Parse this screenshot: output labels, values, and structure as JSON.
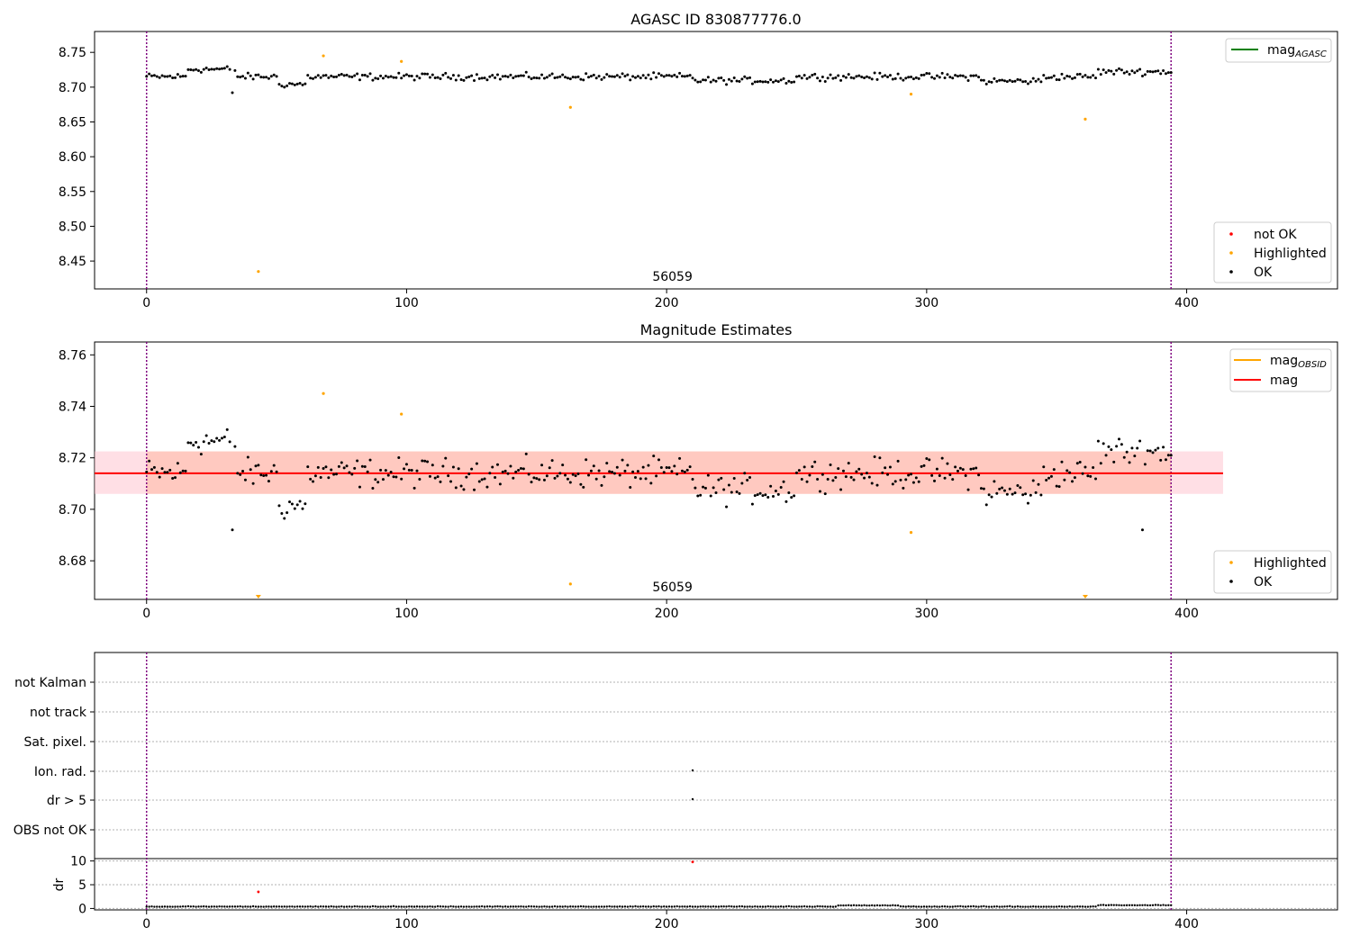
{
  "chart_data": [
    {
      "type": "scatter",
      "title": "AGASC ID 830877776.0",
      "xlim": [
        -20,
        458
      ],
      "ylim": [
        8.41,
        8.78
      ],
      "xticks": [
        0,
        100,
        200,
        300,
        400
      ],
      "yticks": [
        8.45,
        8.5,
        8.55,
        8.6,
        8.65,
        8.7,
        8.75
      ],
      "vlines": [
        0,
        394
      ],
      "annotation": "56059",
      "annotation_x": 196,
      "lines": [
        {
          "name": "mag_AGASC",
          "label_main": "mag",
          "label_sub": "AGASC",
          "color": "#008000"
        }
      ],
      "highlighted": [
        [
          43,
          8.435
        ],
        [
          68,
          8.745
        ],
        [
          98,
          8.737
        ],
        [
          163,
          8.671
        ],
        [
          294,
          8.69
        ],
        [
          361,
          8.654
        ]
      ],
      "ok_base": 8.715,
      "series": [
        {
          "name": "not OK",
          "color": "#ff0000"
        },
        {
          "name": "Highlighted",
          "color": "#ffa500"
        },
        {
          "name": "OK",
          "color": "#000000"
        }
      ]
    },
    {
      "type": "scatter",
      "title": "Magnitude Estimates",
      "xlim": [
        -20,
        458
      ],
      "ylim": [
        8.665,
        8.765
      ],
      "xticks": [
        0,
        100,
        200,
        300,
        400
      ],
      "yticks": [
        8.68,
        8.7,
        8.72,
        8.74,
        8.76
      ],
      "vlines": [
        0,
        394
      ],
      "annotation": "56059",
      "annotation_x": 196,
      "mag": 8.714,
      "band_inner": [
        8.706,
        8.7225
      ],
      "band_outer": [
        8.706,
        8.7225
      ],
      "band_x": [
        -20,
        414
      ],
      "lines": [
        {
          "name": "mag_OBSID",
          "label_main": "mag",
          "label_sub": "OBSID",
          "color": "#ffa500"
        },
        {
          "name": "mag",
          "label_main": "mag",
          "label_sub": "",
          "color": "#ff0000"
        }
      ],
      "highlighted": [
        [
          68,
          8.745
        ],
        [
          98,
          8.737
        ],
        [
          163,
          8.671
        ],
        [
          294,
          8.691
        ]
      ],
      "highlighted_clipped": [
        43,
        361
      ],
      "ok_base": 8.714,
      "series": [
        {
          "name": "Highlighted",
          "color": "#ffa500"
        },
        {
          "name": "OK",
          "color": "#000000"
        }
      ]
    },
    {
      "type": "scatter",
      "title": "",
      "xlim": [
        -20,
        458
      ],
      "xticks": [
        0,
        100,
        200,
        300,
        400
      ],
      "flag_labels": [
        "not Kalman",
        "not track",
        "Sat. pixel.",
        "Ion. rad.",
        "dr > 5",
        "OBS not OK"
      ],
      "flag_points": [
        {
          "x": 210,
          "flag": "Ion. rad."
        },
        {
          "x": 210,
          "flag": "dr > 5"
        }
      ],
      "vlines": [
        0,
        394
      ],
      "dr_ylabel": "dr",
      "dr_yticks": [
        0,
        5,
        10
      ],
      "dr_ylim": [
        -0.3,
        10.5
      ],
      "dr_outliers": [
        [
          43,
          3.5
        ],
        [
          210,
          9.8
        ]
      ]
    }
  ]
}
